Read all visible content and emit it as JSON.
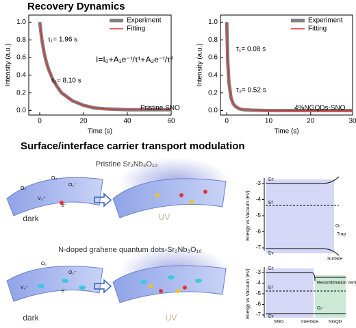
{
  "title": "Recovery Dynamics",
  "chart_data": [
    {
      "type": "line",
      "xlabel": "Time (s)",
      "ylabel": "Intensity (a.u.)",
      "x": [
        0,
        1,
        2,
        3,
        4,
        6,
        8,
        10,
        15,
        20,
        25,
        30,
        40,
        50,
        60
      ],
      "series": [
        {
          "name": "Experiment",
          "color": "#808080",
          "values": [
            1.0,
            0.8,
            0.655,
            0.55,
            0.47,
            0.35,
            0.27,
            0.2,
            0.11,
            0.06,
            0.03,
            0.02,
            0.01,
            0.01,
            0.01
          ]
        },
        {
          "name": "Fitting",
          "color": "#e8292b",
          "values": [
            1.0,
            0.8,
            0.655,
            0.55,
            0.47,
            0.35,
            0.27,
            0.2,
            0.11,
            0.06,
            0.03,
            0.02,
            0.01,
            0.01,
            0.01
          ]
        }
      ],
      "xlim": [
        -5,
        60
      ],
      "xticks": [
        0,
        20,
        40,
        60
      ],
      "ylim": [
        -0.05,
        1.08
      ],
      "yticks": [
        {
          "value": 0,
          "label": "0.0"
        },
        0.2,
        0.4,
        0.6,
        0.8,
        {
          "value": 1,
          "label": "1.0"
        }
      ],
      "legend": "upper right",
      "annotations": [
        {
          "text": "τ₁= 1.96 s",
          "color": "#2a8fd0"
        },
        {
          "text": "I=I₀+A₁e⁻ᵗ/τ¹+A₂e⁻ᵗ/τ²",
          "color": "#000000"
        },
        {
          "text": "τ₂= 8.10 s",
          "color": "#e8292b"
        },
        {
          "text": "Pristine SNO",
          "color": "#000000"
        }
      ]
    },
    {
      "type": "line",
      "xlabel": "Time (s)",
      "ylabel": "Intensity (a.u.)",
      "x": [
        0,
        0.25,
        0.5,
        1,
        1.5,
        2,
        3,
        4,
        6,
        10,
        20,
        30
      ],
      "series": [
        {
          "name": "Experiment",
          "color": "#808080",
          "values": [
            1.0,
            0.55,
            0.33,
            0.15,
            0.08,
            0.05,
            0.02,
            0.01,
            0.005,
            0,
            0,
            0
          ]
        },
        {
          "name": "Fitting",
          "color": "#e8292b",
          "values": [
            1.0,
            0.55,
            0.33,
            0.15,
            0.08,
            0.05,
            0.02,
            0.01,
            0.005,
            0,
            0,
            0
          ]
        }
      ],
      "xlim": [
        -1.5,
        30
      ],
      "xticks": [
        0,
        10,
        20,
        30
      ],
      "ylim": [
        -0.05,
        1.08
      ],
      "yticks": [
        {
          "value": 0,
          "label": "0.0"
        },
        0.2,
        0.4,
        0.6,
        0.8,
        {
          "value": 1,
          "label": "1.0"
        }
      ],
      "legend": "upper right",
      "annotations": [
        {
          "text": "τ₁= 0.08 s",
          "color": "#2a8fd0"
        },
        {
          "text": "τ₂= 0.52 s",
          "color": "#e8292b"
        },
        {
          "text": "4%NGQDs-SNO",
          "color": "#000000"
        }
      ]
    }
  ],
  "lower": {
    "title": "Surface/interface carrier transport modulation",
    "scenes": [
      {
        "caption": "Pristine Sr₂Nb₃O₁₀",
        "left": "dark",
        "right": "UV",
        "species": [
          "O₂",
          "O₂",
          "O₂⁻",
          "e⁻",
          "V₀⁺"
        ]
      },
      {
        "caption": "N-doped grahene quantum dots-Sr₂Nb₃O₁₀",
        "left": "dark",
        "right": "UV",
        "species": [
          "O₂",
          "O₂⁻",
          "e⁻",
          "V₀⁺"
        ]
      }
    ],
    "energy_diagrams": [
      {
        "ylabel": "Energy vs Vacuum (eV)",
        "yticks": [
          -3,
          -4,
          -5,
          -6,
          -7
        ],
        "labels": [
          "Ec",
          "Ef",
          "Ev",
          "O₂⁻",
          "Trap",
          "Surface"
        ]
      },
      {
        "ylabel": "Energy vs Vacuum (eV)",
        "yticks": [
          -3,
          -4,
          -5,
          -6,
          -7
        ],
        "labels": [
          "Ec",
          "Ef",
          "Ev",
          "Recombination center",
          "O₂⁻",
          "SNO",
          "Interface",
          "NGQD"
        ]
      }
    ]
  }
}
